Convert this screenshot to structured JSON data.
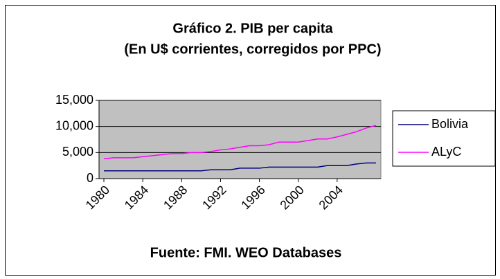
{
  "chart_data": {
    "type": "line",
    "title": "Gráfico 2. PIB per capita",
    "subtitle": "(En U$ corrientes, corregidos por PPC)",
    "xlabel": "Fuente: FMI. WEO Databases",
    "x": [
      1980,
      1981,
      1982,
      1983,
      1984,
      1985,
      1986,
      1987,
      1988,
      1989,
      1990,
      1991,
      1992,
      1993,
      1994,
      1995,
      1996,
      1997,
      1998,
      1999,
      2000,
      2001,
      2002,
      2003,
      2004,
      2005,
      2006,
      2007,
      2008
    ],
    "xlim": [
      1979.5,
      2008.5
    ],
    "xticks": [
      1980,
      1984,
      1988,
      1992,
      1996,
      2000,
      2004
    ],
    "ylim": [
      0,
      15000
    ],
    "yticks": [
      {
        "value": 0,
        "label": "0"
      },
      {
        "value": 5000,
        "label": "5,000"
      },
      {
        "value": 10000,
        "label": "10,000"
      },
      {
        "value": 15000,
        "label": "15,000"
      }
    ],
    "grid": true,
    "legend": "right",
    "series": [
      {
        "name": "Bolivia",
        "color": "#000080",
        "values": [
          1500,
          1500,
          1500,
          1500,
          1500,
          1500,
          1500,
          1500,
          1500,
          1500,
          1500,
          1700,
          1700,
          1700,
          2000,
          2000,
          2000,
          2200,
          2200,
          2200,
          2200,
          2200,
          2200,
          2500,
          2500,
          2500,
          2800,
          3000,
          3000
        ]
      },
      {
        "name": "ALyC",
        "color": "#ff00ff",
        "values": [
          3800,
          4000,
          4000,
          4000,
          4200,
          4400,
          4600,
          4800,
          4800,
          5000,
          5000,
          5200,
          5500,
          5700,
          6000,
          6300,
          6300,
          6500,
          7000,
          7000,
          7000,
          7300,
          7600,
          7600,
          8000,
          8500,
          9000,
          9700,
          10200
        ]
      }
    ]
  }
}
